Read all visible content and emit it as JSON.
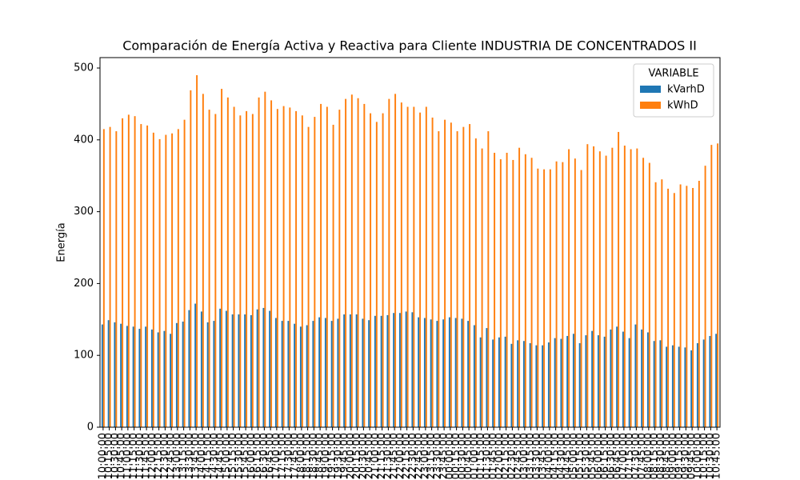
{
  "chart_data": {
    "type": "bar",
    "title": "Comparación de Energía Activa y Reactiva para Cliente INDUSTRIA DE CONCENTRADOS II",
    "y_label": "Energía",
    "legend_title": "VARIABLE",
    "legend_position": "upper right",
    "categories": [
      "10:00:00",
      "10:15:00",
      "10:30:00",
      "10:45:00",
      "11:00:00",
      "11:15:00",
      "11:30:00",
      "11:45:00",
      "12:00:00",
      "12:15:00",
      "12:30:00",
      "12:45:00",
      "13:00:00",
      "13:15:00",
      "13:30:00",
      "13:45:00",
      "14:00:00",
      "14:15:00",
      "14:30:00",
      "14:45:00",
      "15:00:00",
      "15:15:00",
      "15:30:00",
      "15:45:00",
      "16:00:00",
      "16:15:00",
      "16:30:00",
      "16:45:00",
      "17:00:00",
      "17:15:00",
      "17:30:00",
      "17:45:00",
      "18:00:00",
      "18:15:00",
      "18:30:00",
      "18:45:00",
      "19:00:00",
      "19:15:00",
      "19:30:00",
      "19:45:00",
      "20:00:00",
      "20:15:00",
      "20:30:00",
      "20:45:00",
      "21:00:00",
      "21:15:00",
      "21:30:00",
      "21:45:00",
      "22:00:00",
      "22:15:00",
      "22:30:00",
      "22:45:00",
      "23:00:00",
      "23:15:00",
      "23:30:00",
      "23:45:00",
      "00:00:00",
      "00:15:00",
      "00:30:00",
      "00:45:00",
      "01:00:00",
      "01:15:00",
      "01:30:00",
      "01:45:00",
      "02:00:00",
      "02:15:00",
      "02:30:00",
      "02:45:00",
      "03:00:00",
      "03:15:00",
      "03:30:00",
      "03:45:00",
      "04:00:00",
      "04:15:00",
      "04:30:00",
      "04:45:00",
      "05:00:00",
      "05:15:00",
      "05:30:00",
      "05:45:00",
      "06:00:00",
      "06:15:00",
      "06:30:00",
      "06:45:00",
      "07:00:00",
      "07:15:00",
      "07:30:00",
      "07:45:00",
      "08:00:00",
      "08:15:00",
      "08:30:00",
      "08:45:00",
      "09:00:00",
      "09:15:00",
      "09:30:00",
      "09:45:00",
      "10:00:00",
      "10:15:00",
      "10:30:00",
      "10:45:00"
    ],
    "series": [
      {
        "name": "kVarhD",
        "color": "#1f77b4",
        "values": [
          143,
          149,
          146,
          144,
          141,
          140,
          137,
          140,
          136,
          132,
          134,
          130,
          145,
          147,
          163,
          172,
          161,
          146,
          148,
          165,
          162,
          157,
          157,
          157,
          156,
          164,
          166,
          162,
          152,
          148,
          148,
          144,
          140,
          142,
          148,
          153,
          152,
          148,
          151,
          157,
          157,
          157,
          151,
          149,
          155,
          155,
          156,
          159,
          159,
          161,
          160,
          153,
          152,
          150,
          148,
          150,
          153,
          152,
          151,
          148,
          142,
          125,
          138,
          122,
          125,
          126,
          116,
          121,
          120,
          117,
          114,
          114,
          118,
          124,
          123,
          127,
          130,
          117,
          128,
          134,
          128,
          126,
          136,
          140,
          133,
          124,
          143,
          136,
          132,
          120,
          121,
          112,
          114,
          112,
          111,
          107,
          117,
          122,
          127,
          130
        ]
      },
      {
        "name": "kWhD",
        "color": "#ff7f0e",
        "values": [
          415,
          418,
          412,
          430,
          435,
          433,
          422,
          420,
          410,
          401,
          407,
          409,
          415,
          428,
          469,
          490,
          464,
          442,
          436,
          471,
          459,
          446,
          434,
          440,
          436,
          459,
          467,
          455,
          443,
          447,
          445,
          440,
          434,
          418,
          432,
          450,
          446,
          421,
          442,
          457,
          463,
          458,
          450,
          437,
          425,
          437,
          457,
          464,
          452,
          446,
          446,
          438,
          446,
          431,
          412,
          428,
          424,
          412,
          418,
          422,
          402,
          388,
          412,
          382,
          373,
          382,
          372,
          389,
          380,
          375,
          360,
          359,
          359,
          370,
          369,
          387,
          374,
          358,
          394,
          391,
          384,
          378,
          389,
          411,
          392,
          387,
          388,
          375,
          368,
          341,
          345,
          332,
          326,
          338,
          336,
          333,
          343,
          364,
          393,
          395
        ]
      }
    ],
    "ylim": [
      0,
      514.5
    ],
    "yticks": [
      0,
      100,
      200,
      300,
      400,
      500
    ]
  }
}
